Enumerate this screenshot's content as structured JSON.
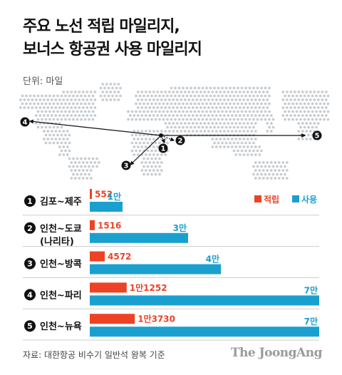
{
  "title_lines": [
    "주요 노선 적립 마일리지,",
    "보너스 항공권 사용 마일리지"
  ],
  "unit_label": "단위: 마일",
  "source": "자료: 대한항공 비수기 일반석 왕복 기준",
  "brand": "The JoongAng",
  "colors": {
    "earn": "#ee4224",
    "use": "#1aa0cf",
    "map_dot": "#c9cdd1",
    "text": "#111111",
    "route": "#111111",
    "separator": "#cccccc"
  },
  "map_markers": [
    {
      "number": "1"
    },
    {
      "number": "2"
    },
    {
      "number": "3"
    },
    {
      "number": "4"
    },
    {
      "number": "5"
    }
  ],
  "chart_data": {
    "type": "bar",
    "orientation": "horizontal",
    "legend_position": "top-right",
    "series": [
      {
        "name": "적립",
        "color": "#ee4224"
      },
      {
        "name": "사용",
        "color": "#1aa0cf"
      }
    ],
    "routes": [
      {
        "number": "1",
        "lines": [
          "김포~제주"
        ],
        "earn": 552,
        "earn_label": "552",
        "use": 10000,
        "use_label": "1만"
      },
      {
        "number": "2",
        "lines": [
          "인천~도쿄",
          "(나리타)"
        ],
        "earn": 1516,
        "earn_label": "1516",
        "use": 30000,
        "use_label": "3만"
      },
      {
        "number": "3",
        "lines": [
          "인천~방콕"
        ],
        "earn": 4572,
        "earn_label": "4572",
        "use": 40000,
        "use_label": "4만"
      },
      {
        "number": "4",
        "lines": [
          "인천~파리"
        ],
        "earn": 11252,
        "earn_label": "1만1252",
        "use": 70000,
        "use_label": "7만"
      },
      {
        "number": "5",
        "lines": [
          "인천~뉴욕"
        ],
        "earn": 13730,
        "earn_label": "1만3730",
        "use": 70000,
        "use_label": "7만"
      }
    ]
  }
}
